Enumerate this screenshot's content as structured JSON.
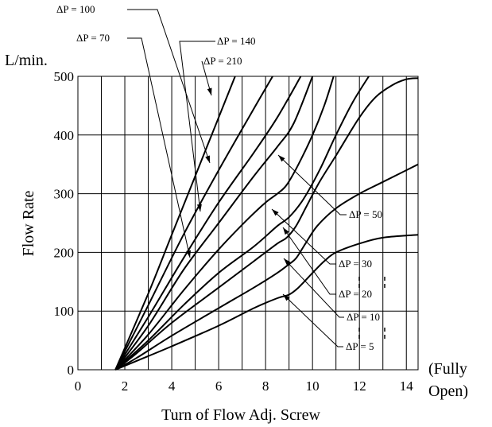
{
  "chart_data": {
    "type": "line",
    "ylabel": "Flow Rate",
    "yunit": "L/min.",
    "xlabel": "Turn of Flow Adj. Screw",
    "x_end_note": [
      "(Fully",
      "Open)"
    ],
    "xlim": [
      0,
      14.5
    ],
    "ylim": [
      0,
      500
    ],
    "x_ticks": [
      0,
      2,
      4,
      6,
      8,
      10,
      12,
      14
    ],
    "y_ticks": [
      0,
      100,
      200,
      300,
      400,
      500
    ],
    "x_tick_labels": [
      "0",
      "2",
      "4",
      "6",
      "8",
      "10",
      "12",
      "14"
    ],
    "y_tick_labels": [
      "0",
      "100",
      "200",
      "300",
      "400",
      "500"
    ],
    "grid": true,
    "series": [
      {
        "name": "ΔP = 5",
        "points": [
          [
            1.6,
            0
          ],
          [
            2.5,
            15
          ],
          [
            4,
            40
          ],
          [
            6,
            75
          ],
          [
            7.5,
            105
          ],
          [
            8.5,
            122
          ],
          [
            9,
            128
          ],
          [
            9.4,
            140
          ],
          [
            10,
            165
          ],
          [
            10.5,
            185
          ],
          [
            11,
            200
          ],
          [
            12,
            215
          ],
          [
            13,
            225
          ],
          [
            14.5,
            230
          ]
        ]
      },
      {
        "name": "ΔP = 10",
        "points": [
          [
            1.6,
            0
          ],
          [
            2.5,
            20
          ],
          [
            4,
            58
          ],
          [
            6,
            105
          ],
          [
            7.5,
            140
          ],
          [
            8.5,
            165
          ],
          [
            9,
            180
          ],
          [
            9.3,
            190
          ],
          [
            9.7,
            215
          ],
          [
            10.2,
            245
          ],
          [
            11,
            275
          ],
          [
            12,
            300
          ],
          [
            13,
            320
          ],
          [
            14.5,
            350
          ]
        ]
      },
      {
        "name": "ΔP = 20",
        "points": [
          [
            1.6,
            0
          ],
          [
            2.5,
            28
          ],
          [
            4,
            80
          ],
          [
            6,
            140
          ],
          [
            7.5,
            185
          ],
          [
            8.5,
            215
          ],
          [
            8.9,
            225
          ],
          [
            9.3,
            245
          ],
          [
            9.7,
            275
          ],
          [
            10.3,
            320
          ],
          [
            11,
            365
          ],
          [
            12,
            430
          ],
          [
            12.7,
            465
          ],
          [
            13.4,
            485
          ],
          [
            14,
            495
          ],
          [
            14.5,
            497
          ]
        ]
      },
      {
        "name": "ΔP = 30",
        "points": [
          [
            1.6,
            0
          ],
          [
            3,
            50
          ],
          [
            4.5,
            110
          ],
          [
            6,
            165
          ],
          [
            7.5,
            210
          ],
          [
            8.5,
            245
          ],
          [
            9,
            260
          ],
          [
            9.6,
            290
          ],
          [
            10.3,
            340
          ],
          [
            11,
            400
          ],
          [
            11.7,
            455
          ],
          [
            12.4,
            500
          ]
        ]
      },
      {
        "name": "ΔP = 50",
        "points": [
          [
            1.6,
            0
          ],
          [
            3,
            60
          ],
          [
            4.5,
            135
          ],
          [
            6,
            205
          ],
          [
            7.2,
            255
          ],
          [
            8,
            285
          ],
          [
            8.5,
            300
          ],
          [
            8.9,
            315
          ],
          [
            9.4,
            350
          ],
          [
            10,
            400
          ],
          [
            10.5,
            450
          ],
          [
            10.9,
            500
          ]
        ]
      },
      {
        "name": "ΔP = 70",
        "points": [
          [
            1.6,
            0
          ],
          [
            3,
            75
          ],
          [
            4.5,
            170
          ],
          [
            6,
            250
          ],
          [
            7.5,
            330
          ],
          [
            8.5,
            380
          ],
          [
            9.2,
            420
          ],
          [
            10,
            500
          ]
        ]
      },
      {
        "name": "ΔP = 100",
        "points": [
          [
            1.6,
            0
          ],
          [
            3,
            90
          ],
          [
            4.5,
            190
          ],
          [
            6,
            285
          ],
          [
            7.5,
            370
          ],
          [
            8.5,
            430
          ],
          [
            9.5,
            500
          ]
        ]
      },
      {
        "name": "ΔP = 140",
        "points": [
          [
            1.6,
            0
          ],
          [
            3,
            110
          ],
          [
            4.5,
            230
          ],
          [
            6,
            340
          ],
          [
            7.5,
            445
          ],
          [
            8.3,
            500
          ]
        ]
      },
      {
        "name": "ΔP = 210",
        "points": [
          [
            1.6,
            0
          ],
          [
            3,
            130
          ],
          [
            4,
            230
          ],
          [
            5,
            330
          ],
          [
            6,
            430
          ],
          [
            6.7,
            500
          ]
        ]
      }
    ],
    "annotations": [
      {
        "text": "ΔP = 100",
        "series": "ΔP = 100"
      },
      {
        "text": "ΔP = 70",
        "series": "ΔP = 70"
      },
      {
        "text": "ΔP = 140",
        "series": "ΔP = 140"
      },
      {
        "text": "ΔP = 210",
        "series": "ΔP = 210"
      },
      {
        "text": "ΔP = 50",
        "series": "ΔP = 50"
      },
      {
        "text": "ΔP = 30",
        "series": "ΔP = 30"
      },
      {
        "text": "ΔP = 20",
        "series": "ΔP = 20"
      },
      {
        "text": "ΔP = 10",
        "series": "ΔP = 10"
      },
      {
        "text": "ΔP = 5",
        "series": "ΔP = 5"
      }
    ]
  }
}
